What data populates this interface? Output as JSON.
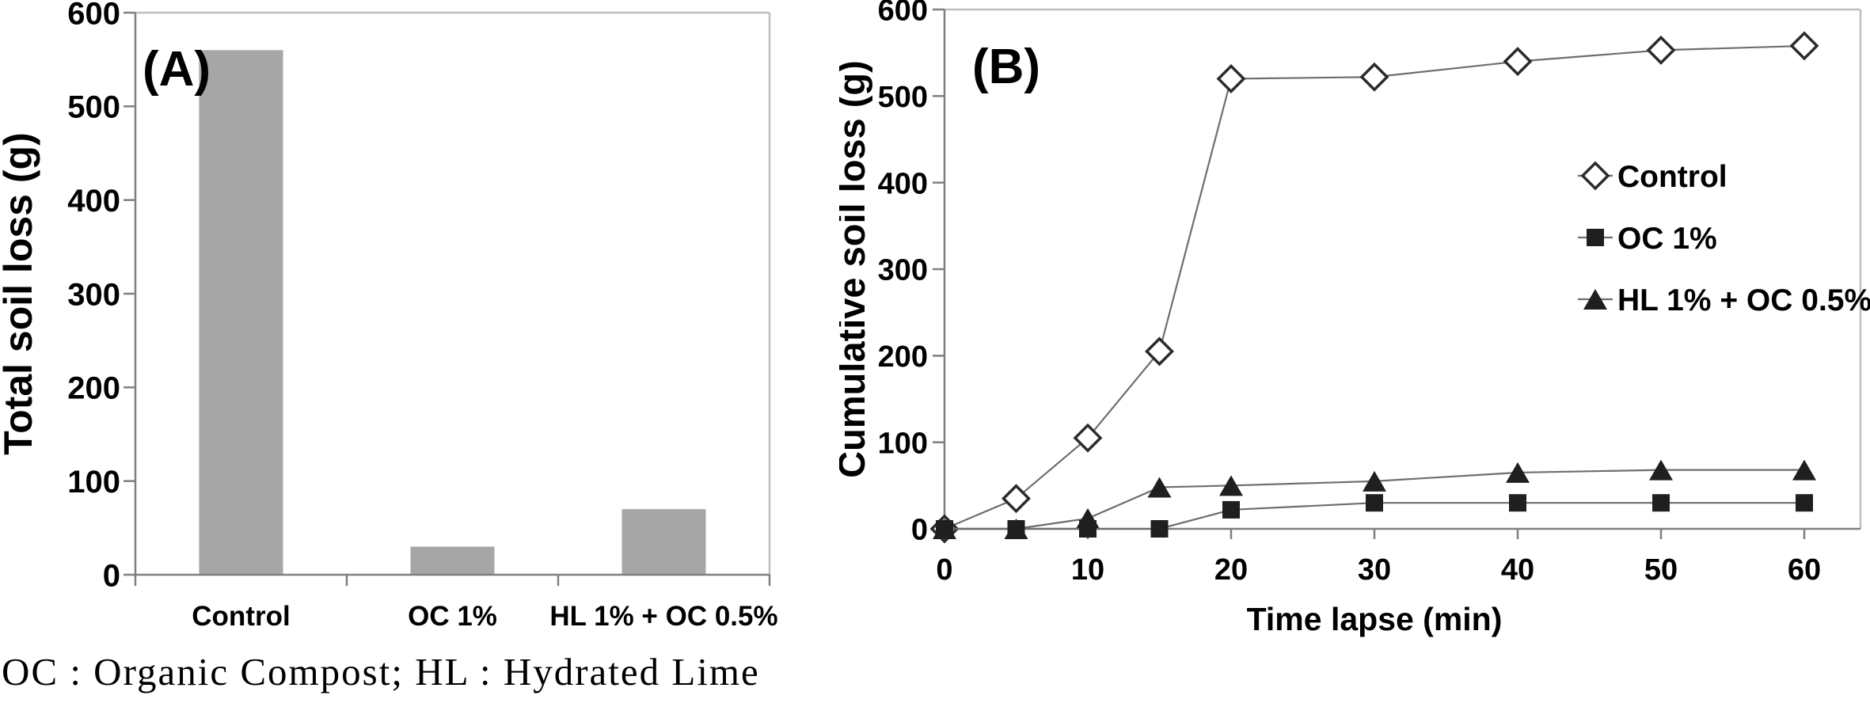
{
  "figure": {
    "background": "#ffffff",
    "caption": "OC : Organic Compost; HL : Hydrated Lime"
  },
  "colors": {
    "bar_fill": "#a6a6a6",
    "series_line": "#6e6e6e",
    "marker_fill": "#1f1f1f",
    "diamond_stroke": "#2b2b2b",
    "diamond_fill": "#ffffff",
    "axis_line": "#7f7f7f",
    "frame_line": "#bfbfbf",
    "text": "#000000"
  },
  "chart_data": [
    {
      "id": "A",
      "type": "bar",
      "panel_label": "(A)",
      "ylabel": "Total soil loss (g)",
      "xlabel": "",
      "ylim": [
        0,
        600
      ],
      "yticks": [
        0,
        100,
        200,
        300,
        400,
        500,
        600
      ],
      "grid": false,
      "categories": [
        "Control",
        "OC 1%",
        "HL 1% + OC 0.5%"
      ],
      "values": [
        560,
        30,
        70
      ]
    },
    {
      "id": "B",
      "type": "line",
      "panel_label": "(B)",
      "ylabel": "Cumulative soil loss (g)",
      "xlabel": "Time lapse (min)",
      "ylim": [
        0,
        600
      ],
      "xlim": [
        0,
        60
      ],
      "yticks": [
        0,
        100,
        200,
        300,
        400,
        500,
        600
      ],
      "xticks": [
        0,
        10,
        20,
        30,
        40,
        50,
        60
      ],
      "grid": false,
      "legend_position": "inside-right",
      "x": [
        0,
        5,
        10,
        15,
        20,
        30,
        40,
        50,
        60
      ],
      "series": [
        {
          "name": "Control",
          "marker": "diamond-open",
          "values": [
            0,
            35,
            105,
            205,
            520,
            522,
            540,
            553,
            558
          ]
        },
        {
          "name": "OC 1%",
          "marker": "square-filled",
          "values": [
            0,
            0,
            0,
            0,
            22,
            30,
            30,
            30,
            30
          ]
        },
        {
          "name": "HL 1% + OC 0.5%",
          "marker": "triangle-filled",
          "values": [
            0,
            0,
            12,
            48,
            50,
            55,
            65,
            68,
            68
          ]
        }
      ]
    }
  ]
}
